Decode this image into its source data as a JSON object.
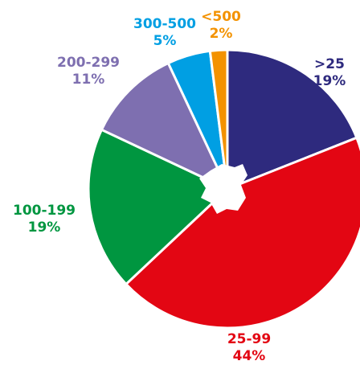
{
  "chart_data": {
    "type": "pie",
    "categories": [
      ">25",
      "25-99",
      "100-199",
      "200-299",
      "300-500",
      "<500"
    ],
    "values": [
      19,
      44,
      19,
      11,
      5,
      2
    ],
    "value_labels": [
      "19%",
      "44%",
      "19%",
      "11%",
      "5%",
      "2%"
    ],
    "colors": [
      "#2e2a7e",
      "#e30613",
      "#009640",
      "#7e6fb0",
      "#009fe3",
      "#f39200"
    ]
  }
}
